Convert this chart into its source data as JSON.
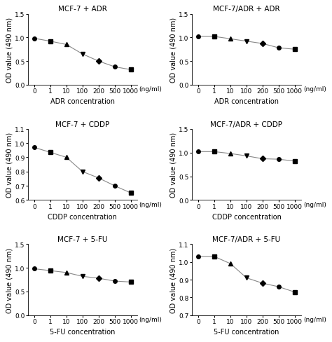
{
  "subplots": [
    {
      "title": "MCF-7 + ADR",
      "xlabel": "ADR concentration",
      "ylabel": "OD value (490 nm)",
      "x_labels": [
        "0",
        "1",
        "10",
        "100",
        "200",
        "500",
        "1000"
      ],
      "y_values": [
        0.98,
        0.92,
        0.85,
        0.65,
        0.5,
        0.38,
        0.32
      ],
      "ylim": [
        0.0,
        1.5
      ],
      "yticks": [
        0.0,
        0.5,
        1.0,
        1.5
      ],
      "markers": [
        "o",
        "s",
        "^",
        "v",
        "D",
        "o",
        "s"
      ]
    },
    {
      "title": "MCF-7/ADR + ADR",
      "xlabel": "ADR concentration",
      "ylabel": "OD value (490 nm)",
      "x_labels": [
        "0",
        "1",
        "10",
        "100",
        "200",
        "500",
        "1000"
      ],
      "y_values": [
        1.02,
        1.02,
        0.97,
        0.92,
        0.87,
        0.78,
        0.75
      ],
      "ylim": [
        0.0,
        1.5
      ],
      "yticks": [
        0.0,
        0.5,
        1.0,
        1.5
      ],
      "markers": [
        "o",
        "s",
        "^",
        "v",
        "D",
        "o",
        "s"
      ]
    },
    {
      "title": "MCF-7 + CDDP",
      "xlabel": "CDDP concentration",
      "ylabel": "OD value (490 nm)",
      "x_labels": [
        "0",
        "1",
        "10",
        "100",
        "200",
        "500",
        "1000"
      ],
      "y_values": [
        0.97,
        0.935,
        0.9,
        0.8,
        0.755,
        0.7,
        0.65
      ],
      "ylim": [
        0.6,
        1.1
      ],
      "yticks": [
        0.6,
        0.7,
        0.8,
        0.9,
        1.0,
        1.1
      ],
      "markers": [
        "o",
        "s",
        "^",
        "v",
        "D",
        "o",
        "s"
      ]
    },
    {
      "title": "MCF-7/ADR + CDDP",
      "xlabel": "CDDP concentration",
      "ylabel": "OD value (490 nm)",
      "x_labels": [
        "0",
        "1",
        "10",
        "100",
        "200",
        "500",
        "1000"
      ],
      "y_values": [
        1.02,
        1.02,
        0.98,
        0.93,
        0.87,
        0.86,
        0.82
      ],
      "ylim": [
        0.0,
        1.5
      ],
      "yticks": [
        0.0,
        0.5,
        1.0,
        1.5
      ],
      "markers": [
        "o",
        "s",
        "^",
        "v",
        "D",
        "o",
        "s"
      ]
    },
    {
      "title": "MCF-7 + 5-FU",
      "xlabel": "5-FU concentration",
      "ylabel": "OD value (490 nm)",
      "x_labels": [
        "0",
        "1",
        "10",
        "100",
        "200",
        "500",
        "1000"
      ],
      "y_values": [
        0.98,
        0.94,
        0.9,
        0.82,
        0.78,
        0.72,
        0.7
      ],
      "ylim": [
        0.0,
        1.5
      ],
      "yticks": [
        0.0,
        0.5,
        1.0,
        1.5
      ],
      "markers": [
        "o",
        "o",
        "o",
        "o",
        "o",
        "o",
        "o"
      ]
    },
    {
      "title": "MCF-7/ADR + 5-FU",
      "xlabel": "5-FU concentration",
      "ylabel": "OD value (490 nm)",
      "x_labels": [
        "0",
        "1",
        "10",
        "100",
        "200",
        "500",
        "1000"
      ],
      "y_values": [
        1.03,
        1.03,
        0.99,
        0.91,
        0.88,
        0.86,
        0.83
      ],
      "ylim": [
        0.7,
        1.1
      ],
      "yticks": [
        0.7,
        0.8,
        0.9,
        1.0,
        1.1
      ],
      "markers": [
        "o",
        "s",
        "^",
        "v",
        "D",
        "o",
        "s"
      ]
    }
  ],
  "line_color": "#888888",
  "marker_size": 4,
  "ng_ml_label": "(ng/ml)",
  "background_color": "#ffffff",
  "title_fontsize": 7.5,
  "label_fontsize": 7,
  "tick_fontsize": 6.5
}
